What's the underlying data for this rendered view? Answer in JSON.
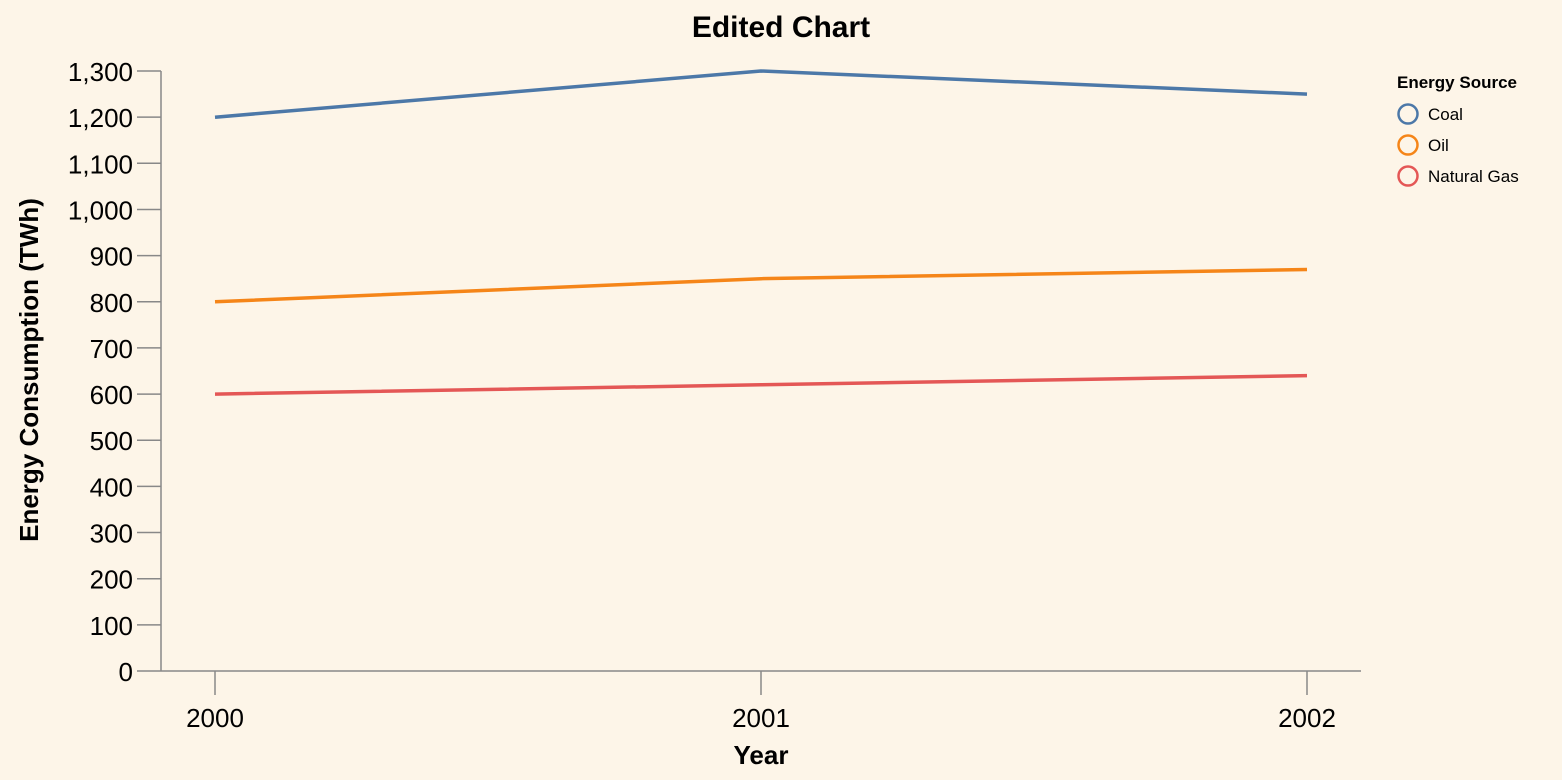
{
  "chart_data": {
    "type": "line",
    "title": "Edited Chart",
    "xlabel": "Year",
    "ylabel": "Energy Consumption (TWh)",
    "x": [
      "2000",
      "2001",
      "2002"
    ],
    "ylim": [
      0,
      1300
    ],
    "yticks": [
      0,
      100,
      200,
      300,
      400,
      500,
      600,
      700,
      800,
      900,
      1000,
      1100,
      1200,
      1300
    ],
    "ytick_labels": [
      "0",
      "100",
      "200",
      "300",
      "400",
      "500",
      "600",
      "700",
      "800",
      "900",
      "1,000",
      "1,100",
      "1,200",
      "1,300"
    ],
    "grid": false,
    "legend": {
      "title": "Energy Source",
      "position": "right"
    },
    "series": [
      {
        "name": "Coal",
        "values": [
          1200,
          1300,
          1250
        ],
        "color": "#4c78a8"
      },
      {
        "name": "Oil",
        "values": [
          800,
          850,
          870
        ],
        "color": "#f58518"
      },
      {
        "name": "Natural Gas",
        "values": [
          600,
          620,
          640
        ],
        "color": "#e45756"
      }
    ],
    "background": "#fdf5e8",
    "axis_color": "#888888"
  }
}
